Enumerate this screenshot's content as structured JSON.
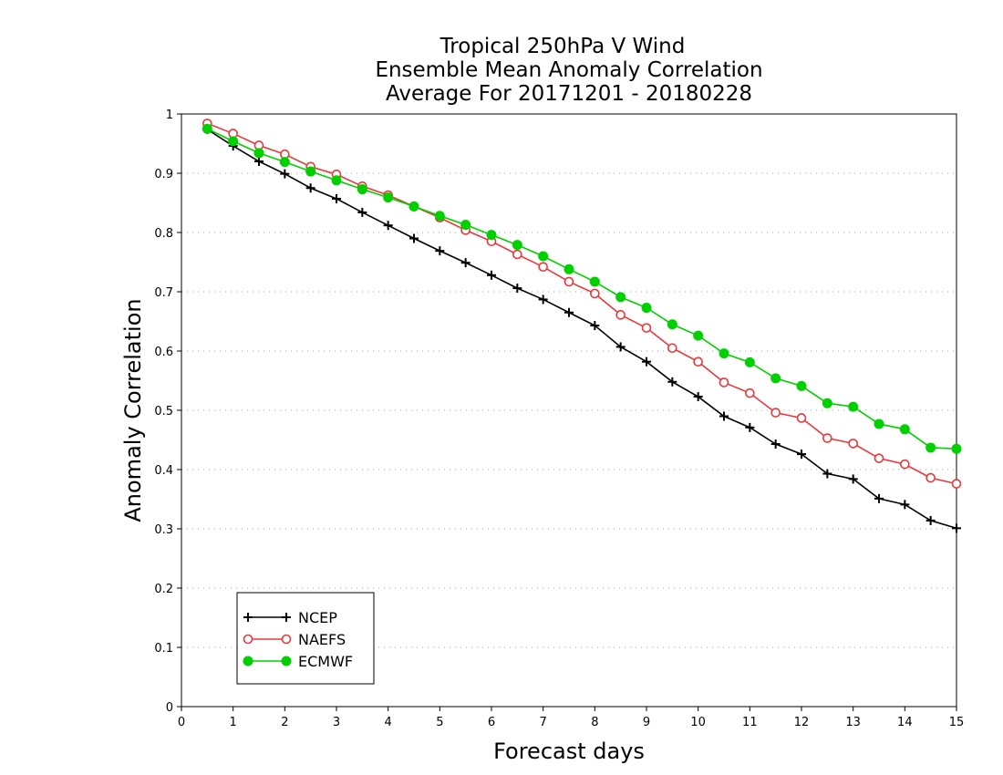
{
  "chart_data": {
    "type": "line",
    "title_lines": [
      "Tropical 250hPa V Wind",
      "Ensemble Mean Anomaly Correlation",
      "Average For 20171201 - 20180228"
    ],
    "xlabel": "Forecast days",
    "ylabel": "Anomaly Correlation",
    "xlim": [
      0,
      15
    ],
    "ylim": [
      0,
      1
    ],
    "x_ticks": [
      "0",
      "1",
      "2",
      "3",
      "4",
      "5",
      "6",
      "7",
      "8",
      "9",
      "10",
      "11",
      "12",
      "13",
      "14",
      "15"
    ],
    "y_ticks": [
      "0",
      "0.1",
      "0.2",
      "0.3",
      "0.4",
      "0.5",
      "0.6",
      "0.7",
      "0.8",
      "0.9",
      "1"
    ],
    "grid": true,
    "legend_position": "bottom-left",
    "x": [
      0.5,
      1,
      1.5,
      2,
      2.5,
      3,
      3.5,
      4,
      4.5,
      5,
      5.5,
      6,
      6.5,
      7,
      7.5,
      8,
      8.5,
      9,
      9.5,
      10,
      10.5,
      11,
      11.5,
      12,
      12.5,
      13,
      13.5,
      14,
      14.5,
      15
    ],
    "series": [
      {
        "name": "NCEP",
        "color": "#000000",
        "marker": "plus",
        "values": [
          0.974,
          0.946,
          0.92,
          0.899,
          0.875,
          0.857,
          0.834,
          0.812,
          0.79,
          0.769,
          0.749,
          0.728,
          0.706,
          0.687,
          0.665,
          0.643,
          0.607,
          0.582,
          0.548,
          0.523,
          0.49,
          0.471,
          0.443,
          0.426,
          0.393,
          0.384,
          0.351,
          0.341,
          0.314,
          0.301
        ]
      },
      {
        "name": "NAEFS",
        "color": "#e8383b",
        "marker": "open-circle",
        "values": [
          0.984,
          0.967,
          0.947,
          0.932,
          0.911,
          0.898,
          0.878,
          0.863,
          0.844,
          0.825,
          0.804,
          0.785,
          0.763,
          0.742,
          0.717,
          0.697,
          0.661,
          0.639,
          0.605,
          0.582,
          0.547,
          0.529,
          0.496,
          0.487,
          0.453,
          0.444,
          0.419,
          0.409,
          0.386,
          0.376
        ]
      },
      {
        "name": "ECMWF",
        "color": "#00d000",
        "marker": "filled-circle",
        "values": [
          0.975,
          0.954,
          0.934,
          0.919,
          0.903,
          0.888,
          0.873,
          0.859,
          0.844,
          0.828,
          0.813,
          0.796,
          0.779,
          0.76,
          0.738,
          0.717,
          0.691,
          0.673,
          0.645,
          0.626,
          0.596,
          0.581,
          0.554,
          0.541,
          0.512,
          0.506,
          0.477,
          0.468,
          0.437,
          0.435
        ]
      }
    ]
  }
}
